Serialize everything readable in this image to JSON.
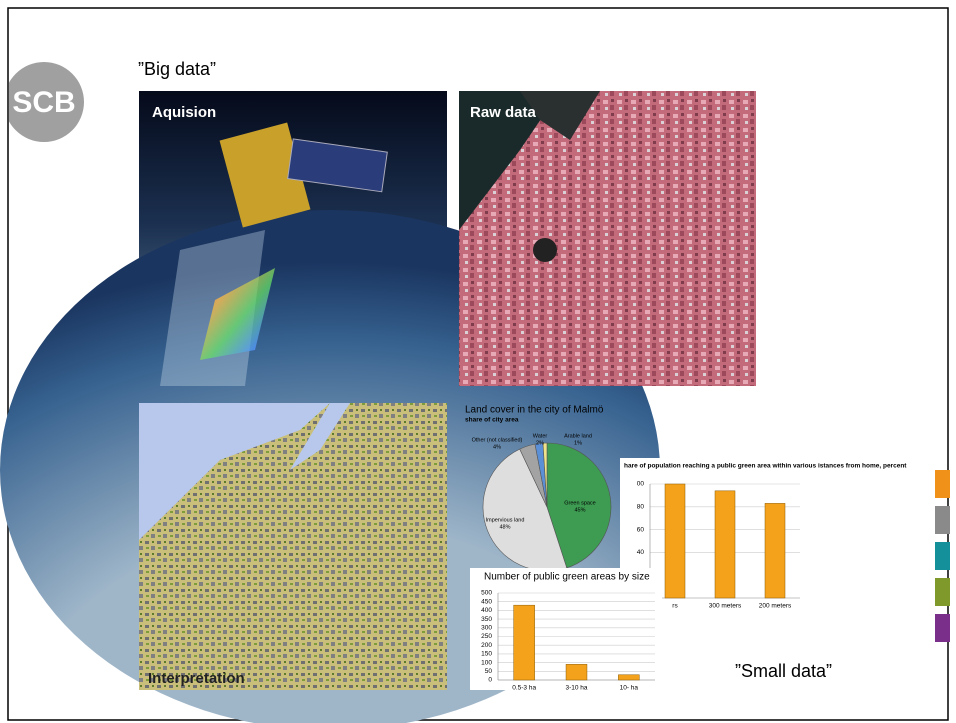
{
  "logo": "SCB",
  "title": "”Big data”",
  "panels": [
    "Aquision",
    "Raw data",
    "Interpretation"
  ],
  "footer": "”Small data”",
  "chart_data": [
    {
      "type": "pie",
      "title": "Land cover in the city of Malmö",
      "subtitle": "share of city area",
      "categories": [
        "Green space",
        "Impervious land",
        "Other (not classified)",
        "Water",
        "Arable land"
      ],
      "values": [
        45,
        48,
        4,
        2,
        1
      ],
      "value_labels": [
        "45%",
        "48%",
        "4%",
        "2%",
        "1%"
      ],
      "colors": [
        "#3d9b52",
        "#dedede",
        "#a3a3a3",
        "#5b8fd6",
        "#eee38a"
      ]
    },
    {
      "type": "bar",
      "title": "hare of population reaching a public green area within various istances from home, percent",
      "categories": [
        "rs",
        "300 meters",
        "200 meters"
      ],
      "values": [
        100,
        94,
        83
      ],
      "color": "#f4a21c",
      "ylim": [
        0,
        100
      ],
      "yticks": [
        40,
        60,
        80,
        {
          "value": 100,
          "label": "00"
        }
      ],
      "grid": true
    },
    {
      "type": "bar",
      "title": "Number of public green areas by size",
      "categories": [
        "0.5-3 ha",
        "3-10 ha",
        "10- ha"
      ],
      "values": [
        430,
        90,
        30
      ],
      "color": "#f4a21c",
      "ylim": [
        0,
        500
      ],
      "yticks": [
        0,
        50,
        100,
        150,
        200,
        250,
        300,
        350,
        400,
        450,
        500
      ],
      "grid": true
    }
  ]
}
